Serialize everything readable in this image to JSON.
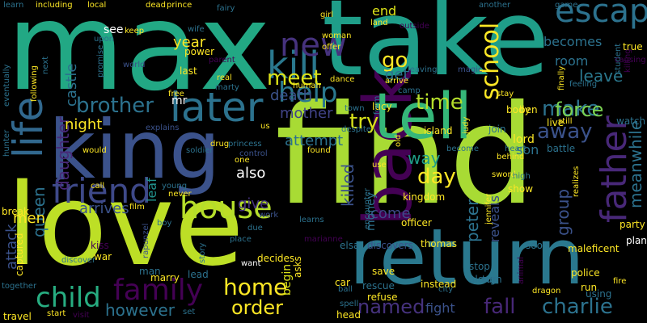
{
  "words": [
    {
      "text": "find",
      "color": "#a8db34"
    },
    {
      "text": "take",
      "color": "#1f9e89"
    },
    {
      "text": "max",
      "color": "#22a884"
    },
    {
      "text": "love",
      "color": "#bddf26"
    },
    {
      "text": "return",
      "color": "#2a788e"
    },
    {
      "text": "king",
      "color": "#3b528b"
    },
    {
      "text": "back",
      "color": "#440154"
    },
    {
      "text": "tell",
      "color": "#35b779"
    },
    {
      "text": "later",
      "color": "#2c728e"
    },
    {
      "text": "life",
      "color": "#31688e"
    },
    {
      "text": "kill",
      "color": "#2a788e"
    },
    {
      "text": "new",
      "color": "#46327e"
    },
    {
      "text": "father",
      "color": "#482878"
    },
    {
      "text": "escape",
      "color": "#2c728e"
    },
    {
      "text": "help",
      "color": "#2a788e"
    },
    {
      "text": "friend",
      "color": "#3e4989"
    },
    {
      "text": "family",
      "color": "#440154"
    },
    {
      "text": "child",
      "color": "#27ad81"
    },
    {
      "text": "house",
      "color": "#b5de2b"
    },
    {
      "text": "home",
      "color": "#fde725"
    },
    {
      "text": "charlie",
      "color": "#2c728e"
    },
    {
      "text": "fall",
      "color": "#482878"
    },
    {
      "text": "named",
      "color": "#46327e"
    },
    {
      "text": "order",
      "color": "#fde725"
    },
    {
      "text": "school",
      "color": "#fde725"
    },
    {
      "text": "time",
      "color": "#b5de2b"
    },
    {
      "text": "meet",
      "color": "#dde318"
    },
    {
      "text": "brother",
      "color": "#2c728e"
    },
    {
      "text": "make",
      "color": "#2c728e"
    },
    {
      "text": "force",
      "color": "#7ad151"
    },
    {
      "text": "go",
      "color": "#fde725"
    },
    {
      "text": "try",
      "color": "#d8e219"
    },
    {
      "text": "away",
      "color": "#3b528b"
    },
    {
      "text": "day",
      "color": "#fde725"
    },
    {
      "text": "leave",
      "color": "#2a788e"
    },
    {
      "text": "however",
      "color": "#2c728e"
    },
    {
      "text": "meanwhile",
      "color": "#2c728e"
    },
    {
      "text": "queen",
      "color": "#2c728e"
    },
    {
      "text": "daughter",
      "color": "#482878"
    },
    {
      "text": "night",
      "color": "#fde725"
    },
    {
      "text": "year",
      "color": "#fde725"
    },
    {
      "text": "death",
      "color": "#3b528b"
    },
    {
      "text": "mother",
      "color": "#404387"
    },
    {
      "text": "attempt",
      "color": "#2c728e"
    },
    {
      "text": "peter",
      "color": "#2c728e"
    },
    {
      "text": "killed",
      "color": "#3b528b"
    },
    {
      "text": "group",
      "color": "#3b528b"
    },
    {
      "text": "way",
      "color": "#1f9e89"
    },
    {
      "text": "come",
      "color": "#3e4989"
    },
    {
      "text": "give",
      "color": "#46327e"
    },
    {
      "text": "also",
      "color": "#ffffff"
    },
    {
      "text": "fight",
      "color": "#3b528b"
    },
    {
      "text": "men",
      "color": "#fde725"
    },
    {
      "text": "arrives",
      "color": "#3b528b"
    },
    {
      "text": "attack",
      "color": "#3b528b"
    },
    {
      "text": "get",
      "color": "#2c728e"
    },
    {
      "text": "end",
      "color": "#dde318"
    },
    {
      "text": "castle",
      "color": "#2c728e"
    },
    {
      "text": "room",
      "color": "#2c728e"
    },
    {
      "text": "becomes",
      "color": "#2c728e"
    },
    {
      "text": "leaf",
      "color": "#21918c"
    },
    {
      "text": "reveals",
      "color": "#3b528b"
    },
    {
      "text": "son",
      "color": "#2c728e"
    },
    {
      "text": "lord",
      "color": "#fde725"
    },
    {
      "text": "money",
      "color": "#2c728e"
    },
    {
      "text": "begin",
      "color": "#dde318"
    },
    {
      "text": "see",
      "color": "#ffffff"
    },
    {
      "text": "mr",
      "color": "#ffffff"
    },
    {
      "text": "watch",
      "color": "#2c728e"
    },
    {
      "text": "party",
      "color": "#fde725"
    },
    {
      "text": "using",
      "color": "#2c728e"
    },
    {
      "text": "rescue",
      "color": "#2c728e"
    },
    {
      "text": "instead",
      "color": "#fde725"
    },
    {
      "text": "kingdom",
      "color": "#fde725"
    },
    {
      "text": "thomas",
      "color": "#fde725"
    },
    {
      "text": "save",
      "color": "#fde725"
    },
    {
      "text": "lucy",
      "color": "#fde725"
    },
    {
      "text": "island",
      "color": "#fde725"
    },
    {
      "text": "join",
      "color": "#2c728e"
    },
    {
      "text": "battle",
      "color": "#2c728e"
    },
    {
      "text": "body",
      "color": "#fde725"
    },
    {
      "text": "live",
      "color": "#fde725"
    },
    {
      "text": "ben",
      "color": "#fde725"
    },
    {
      "text": "show",
      "color": "#fde725"
    },
    {
      "text": "police",
      "color": "#fde725"
    },
    {
      "text": "run",
      "color": "#fde725"
    },
    {
      "text": "soon",
      "color": "#2c728e"
    },
    {
      "text": "plan",
      "color": "#ffffff"
    },
    {
      "text": "maleficent",
      "color": "#fde725"
    },
    {
      "text": "turn",
      "color": "#2c728e"
    },
    {
      "text": "stop",
      "color": "#2c728e"
    },
    {
      "text": "along",
      "color": "#2c728e"
    },
    {
      "text": "elsa",
      "color": "#2c728e"
    },
    {
      "text": "discovers",
      "color": "#3b528b"
    },
    {
      "text": "officer",
      "color": "#fde725"
    },
    {
      "text": "refuse",
      "color": "#fde725"
    },
    {
      "text": "car",
      "color": "#fde725"
    },
    {
      "text": "head",
      "color": "#fde725"
    },
    {
      "text": "decides",
      "color": "#fde725"
    },
    {
      "text": "asks",
      "color": "#fde725"
    },
    {
      "text": "want",
      "color": "#ffffff"
    },
    {
      "text": "place",
      "color": "#2c728e"
    },
    {
      "text": "work",
      "color": "#3b528b"
    },
    {
      "text": "story",
      "color": "#2c728e"
    },
    {
      "text": "lead",
      "color": "#2c728e"
    },
    {
      "text": "man",
      "color": "#2c728e"
    },
    {
      "text": "marry",
      "color": "#fde725"
    },
    {
      "text": "war",
      "color": "#fde725"
    },
    {
      "text": "kiss",
      "color": "#440154"
    },
    {
      "text": "captured",
      "color": "#fde725"
    },
    {
      "text": "break",
      "color": "#fde725"
    },
    {
      "text": "travel",
      "color": "#fde725"
    },
    {
      "text": "start",
      "color": "#fde725"
    },
    {
      "text": "visit",
      "color": "#440154"
    },
    {
      "text": "set",
      "color": "#2c728e"
    },
    {
      "text": "discover",
      "color": "#2c728e"
    },
    {
      "text": "together",
      "color": "#2c728e"
    },
    {
      "text": "call",
      "color": "#fde725"
    },
    {
      "text": "would",
      "color": "#fde725"
    },
    {
      "text": "film",
      "color": "#fde725"
    },
    {
      "text": "young",
      "color": "#2c728e"
    },
    {
      "text": "never",
      "color": "#fde725"
    },
    {
      "text": "boy",
      "color": "#2c728e"
    },
    {
      "text": "soldier",
      "color": "#2c728e"
    },
    {
      "text": "princess",
      "color": "#2c728e"
    },
    {
      "text": "one",
      "color": "#fde725"
    },
    {
      "text": "drug",
      "color": "#fde725"
    },
    {
      "text": "us",
      "color": "#fde725"
    },
    {
      "text": "hunter",
      "color": "#2c728e"
    },
    {
      "text": "explains",
      "color": "#3b528b"
    },
    {
      "text": "world",
      "color": "#3b528b"
    },
    {
      "text": "marty",
      "color": "#2c728e"
    },
    {
      "text": "real",
      "color": "#fde725"
    },
    {
      "text": "last",
      "color": "#fde725"
    },
    {
      "text": "power",
      "color": "#fde725"
    },
    {
      "text": "wife",
      "color": "#2c728e"
    },
    {
      "text": "keep",
      "color": "#fde725"
    },
    {
      "text": "upon",
      "color": "#2c728e"
    },
    {
      "text": "learn",
      "color": "#2c728e"
    },
    {
      "text": "local",
      "color": "#fde725"
    },
    {
      "text": "fairy",
      "color": "#2c728e"
    },
    {
      "text": "girl",
      "color": "#fde725"
    },
    {
      "text": "woman",
      "color": "#fde725"
    },
    {
      "text": "land",
      "color": "#fde725"
    },
    {
      "text": "offer",
      "color": "#fde725"
    },
    {
      "text": "arrive",
      "color": "#fde725"
    },
    {
      "text": "leaving",
      "color": "#2c728e"
    },
    {
      "text": "another",
      "color": "#2c728e"
    },
    {
      "text": "game",
      "color": "#2c728e"
    },
    {
      "text": "student",
      "color": "#2c728e"
    },
    {
      "text": "killing",
      "color": "#440154"
    },
    {
      "text": "finally",
      "color": "#fde725"
    },
    {
      "text": "feeling",
      "color": "#2c728e"
    },
    {
      "text": "magic",
      "color": "#3b528b"
    },
    {
      "text": "human",
      "color": "#fde725"
    },
    {
      "text": "dance",
      "color": "#fde725"
    },
    {
      "text": "camp",
      "color": "#2c728e"
    },
    {
      "text": "town",
      "color": "#2c728e"
    },
    {
      "text": "stay",
      "color": "#fde725"
    },
    {
      "text": "behind",
      "color": "#fde725"
    },
    {
      "text": "judy",
      "color": "#fde725"
    },
    {
      "text": "heart",
      "color": "#2c728e"
    },
    {
      "text": "become",
      "color": "#2c728e"
    },
    {
      "text": "despite",
      "color": "#2c728e"
    },
    {
      "text": "found",
      "color": "#fde725"
    },
    {
      "text": "sword",
      "color": "#fde725"
    },
    {
      "text": "high",
      "color": "#2c728e"
    },
    {
      "text": "realizes",
      "color": "#fde725"
    },
    {
      "text": "jennifer",
      "color": "#fde725"
    },
    {
      "text": "learns",
      "color": "#2c728e"
    },
    {
      "text": "encounter",
      "color": "#2c728e"
    },
    {
      "text": "marianne",
      "color": "#440154"
    },
    {
      "text": "control",
      "color": "#3b528b"
    },
    {
      "text": "due",
      "color": "#2c728e"
    },
    {
      "text": "fire",
      "color": "#fde725"
    },
    {
      "text": "dragon",
      "color": "#fde725"
    },
    {
      "text": "animal",
      "color": "#440154"
    },
    {
      "text": "city",
      "color": "#2c728e"
    },
    {
      "text": "spell",
      "color": "#2c728e"
    },
    {
      "text": "true",
      "color": "#fde725"
    },
    {
      "text": "causing",
      "color": "#440154"
    },
    {
      "text": "free",
      "color": "#fde725"
    },
    {
      "text": "promise",
      "color": "#2c728e"
    },
    {
      "text": "rapunzel",
      "color": "#3b528b"
    },
    {
      "text": "including",
      "color": "#fde725"
    },
    {
      "text": "dead",
      "color": "#fde725"
    },
    {
      "text": "prince",
      "color": "#fde725"
    },
    {
      "text": "next",
      "color": "#2c728e"
    },
    {
      "text": "following",
      "color": "#fde725"
    },
    {
      "text": "eventually",
      "color": "#2c728e"
    },
    {
      "text": "parent",
      "color": "#440154"
    },
    {
      "text": "outside",
      "color": "#440154"
    },
    {
      "text": "old",
      "color": "#fde725"
    },
    {
      "text": "form",
      "color": "#2c728e"
    },
    {
      "text": "ball",
      "color": "#2c728e"
    },
    {
      "text": "still",
      "color": "#fde725"
    },
    {
      "text": "use",
      "color": "#fde725"
    }
  ]
}
